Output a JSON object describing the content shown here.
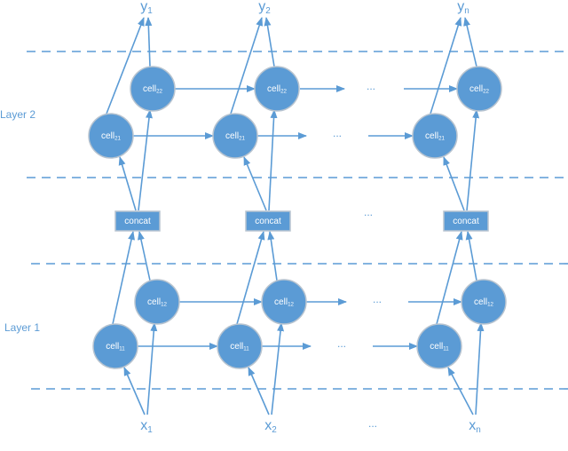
{
  "layers": [
    "Layer 2",
    "Layer 1"
  ],
  "columns": [
    {
      "input": "x",
      "input_sub": "1",
      "output": "y",
      "output_sub": "1"
    },
    {
      "input": "x",
      "input_sub": "2",
      "output": "y",
      "output_sub": "2"
    },
    {
      "input": "x",
      "input_sub": "n",
      "output": "y",
      "output_sub": "n"
    }
  ],
  "cells": {
    "c21": {
      "base": "cell",
      "sub": "21"
    },
    "c22": {
      "base": "cell",
      "sub": "22"
    },
    "c11": {
      "base": "cell",
      "sub": "11"
    },
    "c12": {
      "base": "cell",
      "sub": "12"
    }
  },
  "concat_label": "concat",
  "ellipsis": "...",
  "colors": {
    "node": "#5b9bd5",
    "edge": "#5b9bd5",
    "node_border": "#b8c4d0",
    "text": "#ffffff"
  }
}
